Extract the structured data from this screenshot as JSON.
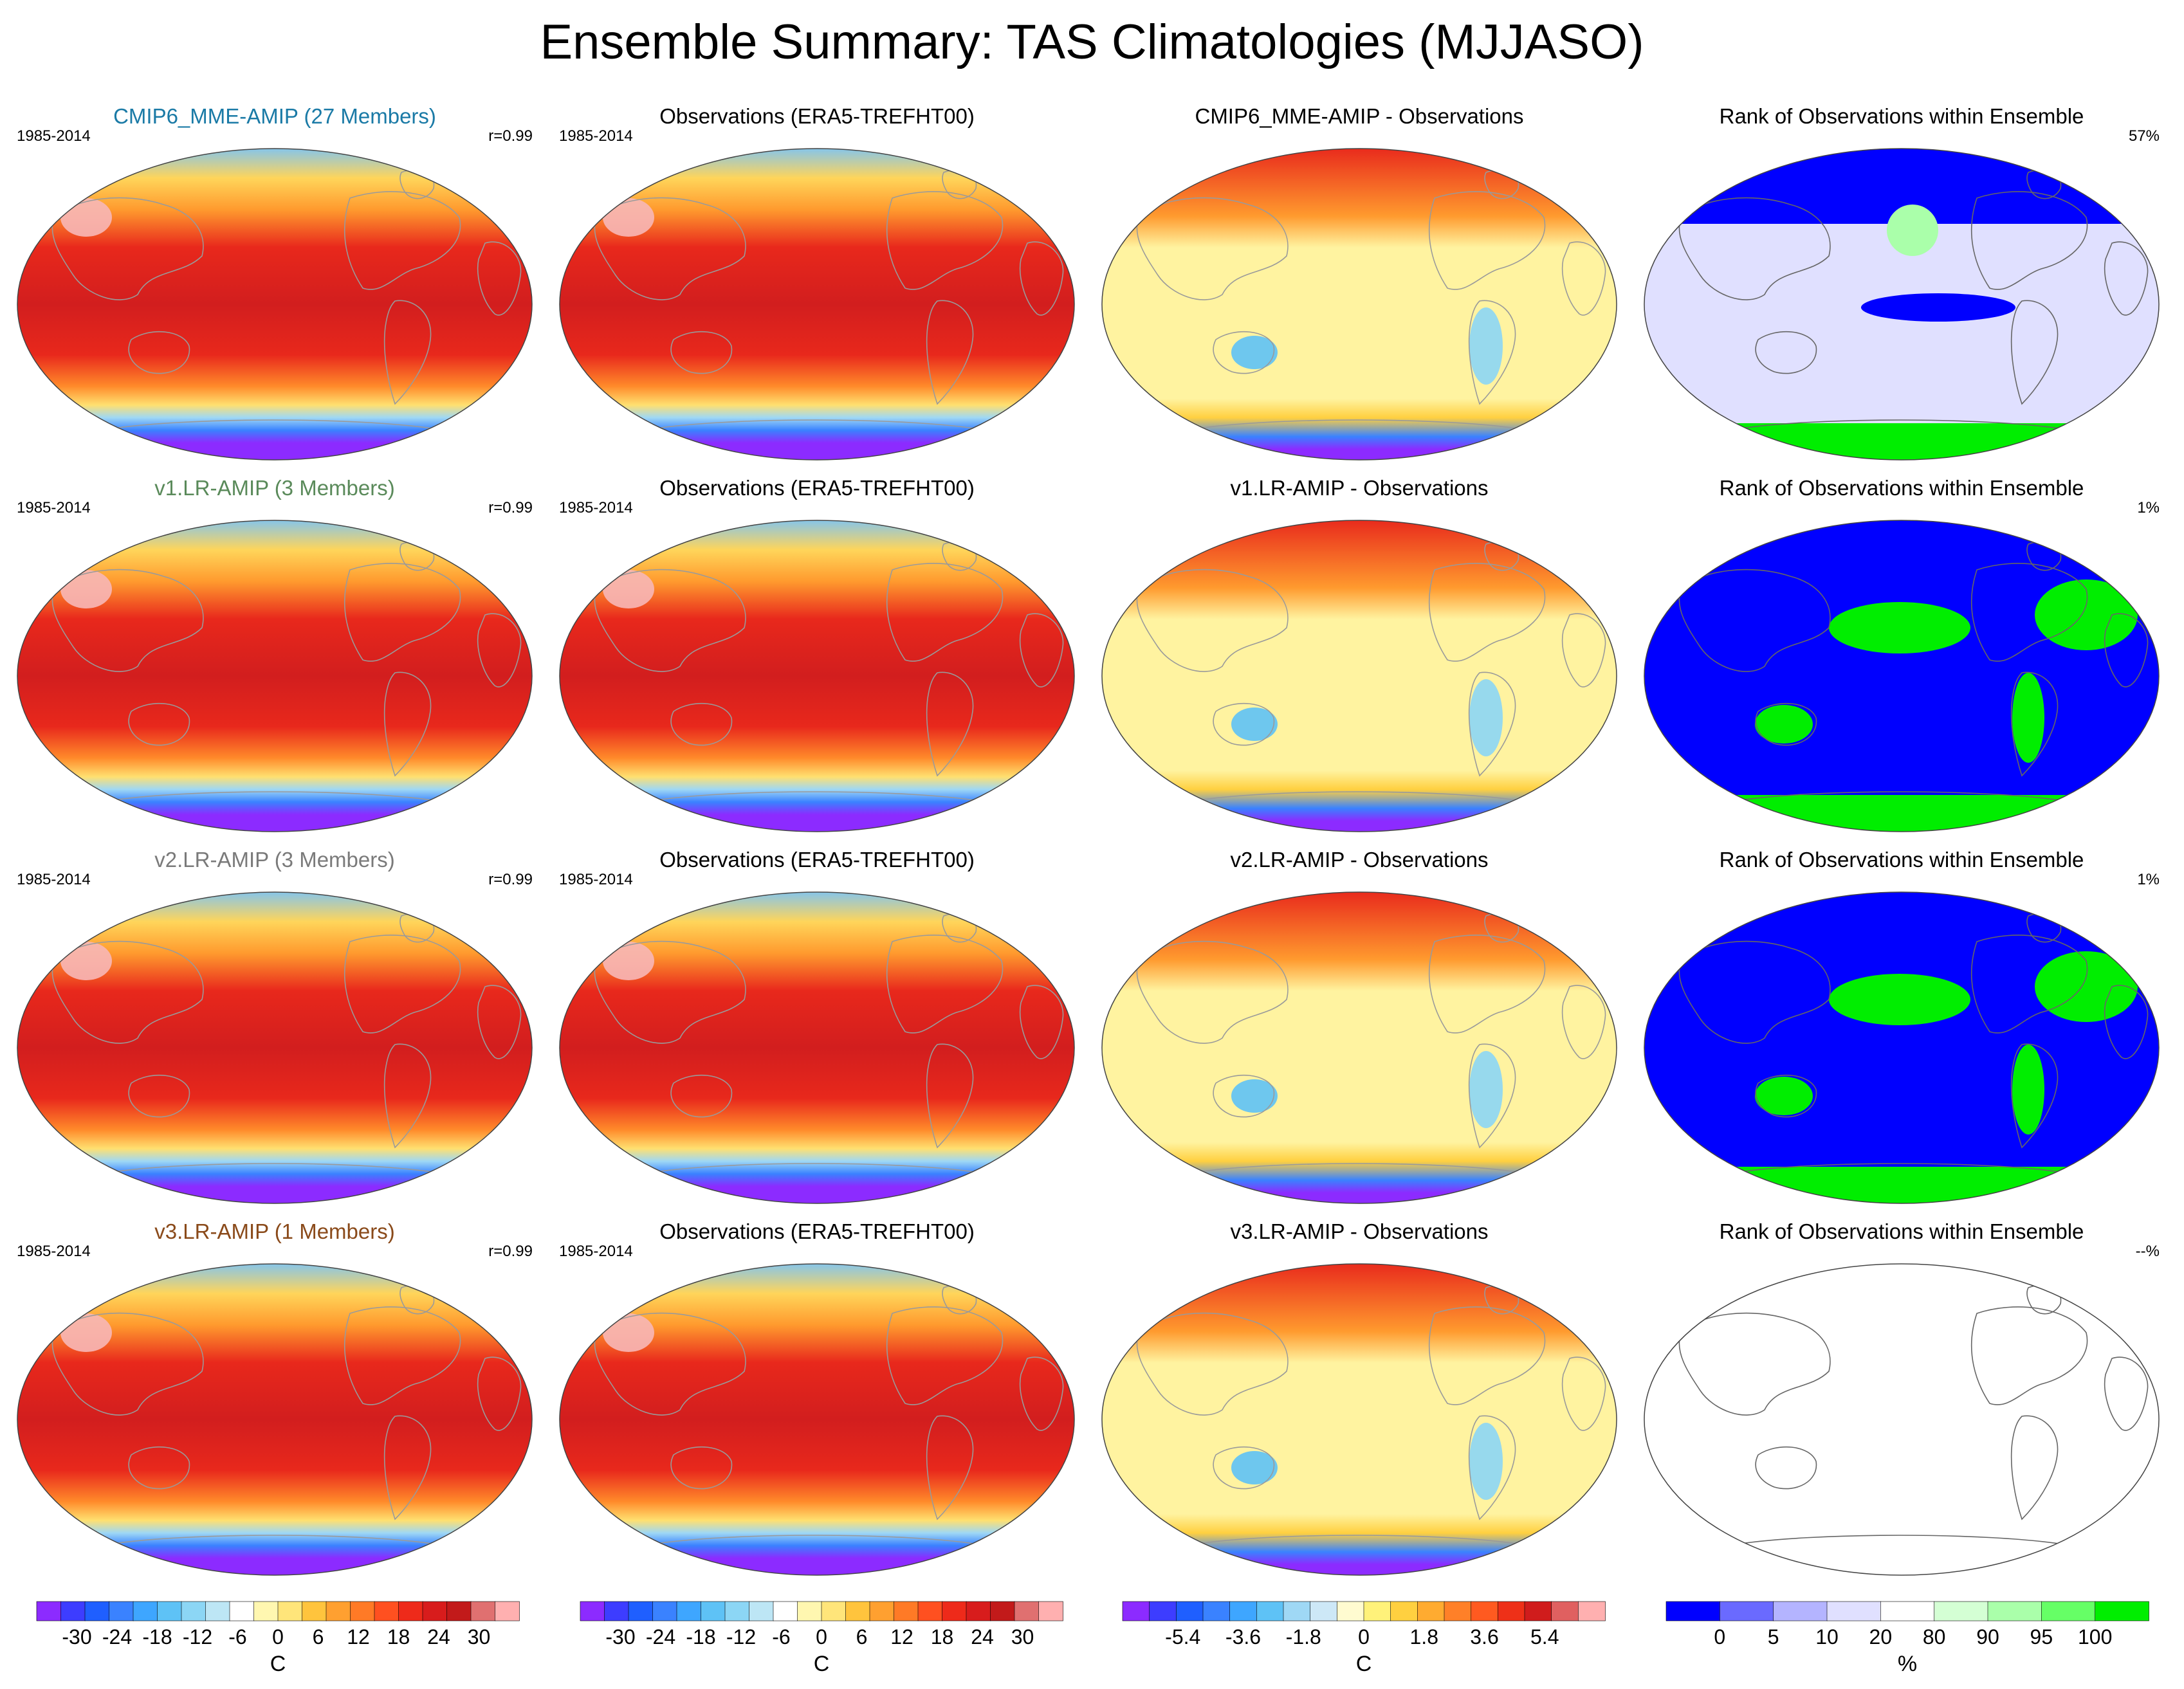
{
  "title": "Ensemble Summary: TAS Climatologies (MJJASO)",
  "colors": {
    "temperature": [
      "#8c2bff",
      "#3d3dff",
      "#1f5fff",
      "#3a82ff",
      "#3ea6ff",
      "#5ec2f6",
      "#8cd6f5",
      "#bde6f5",
      "#ffffff",
      "#fff7b0",
      "#ffe57a",
      "#ffc43d",
      "#ffa030",
      "#ff7a26",
      "#ff5020",
      "#ee2a1a",
      "#d81c1c",
      "#c21a1a",
      "#e07070",
      "#ffb0b0"
    ],
    "difference": [
      "#8c2bff",
      "#3d3dff",
      "#1f5fff",
      "#3a82ff",
      "#3ea6ff",
      "#5ec2f6",
      "#9fd8f5",
      "#cde8f7",
      "#fffbd0",
      "#fff27a",
      "#ffd040",
      "#ffab30",
      "#ff8028",
      "#ff5a20",
      "#ee3018",
      "#d01c1c",
      "#e06060",
      "#ffb0b0"
    ],
    "rank": [
      "#0000ff",
      "#6a6aff",
      "#b4b4ff",
      "#e0e0ff",
      "#ffffff",
      "#d4ffd4",
      "#aaffaa",
      "#66ff66",
      "#00ee00"
    ]
  },
  "rows": [
    {
      "model": {
        "title": "CMIP6_MME-AMIP (27 Members)",
        "title_color": "#1a7aa6",
        "period": "1985-2014",
        "stat": "r=0.99"
      },
      "obs": {
        "title": "Observations (ERA5-TREFHT00)",
        "period": "1985-2014"
      },
      "diff": {
        "title": "CMIP6_MME-AMIP - Observations"
      },
      "rank": {
        "title": "Rank of Observations within Ensemble",
        "stat": "57%"
      }
    },
    {
      "model": {
        "title": "v1.LR-AMIP (3 Members)",
        "title_color": "#5a8a5a",
        "period": "1985-2014",
        "stat": "r=0.99"
      },
      "obs": {
        "title": "Observations (ERA5-TREFHT00)",
        "period": "1985-2014"
      },
      "diff": {
        "title": "v1.LR-AMIP - Observations"
      },
      "rank": {
        "title": "Rank of Observations within Ensemble",
        "stat": "1%"
      }
    },
    {
      "model": {
        "title": "v2.LR-AMIP (3 Members)",
        "title_color": "#7a7a7a",
        "period": "1985-2014",
        "stat": "r=0.99"
      },
      "obs": {
        "title": "Observations (ERA5-TREFHT00)",
        "period": "1985-2014"
      },
      "diff": {
        "title": "v2.LR-AMIP - Observations"
      },
      "rank": {
        "title": "Rank of Observations within Ensemble",
        "stat": "1%"
      }
    },
    {
      "model": {
        "title": "v3.LR-AMIP (1 Members)",
        "title_color": "#8a4a1a",
        "period": "1985-2014",
        "stat": "r=0.99"
      },
      "obs": {
        "title": "Observations (ERA5-TREFHT00)",
        "period": "1985-2014"
      },
      "diff": {
        "title": "v3.LR-AMIP - Observations"
      },
      "rank": {
        "title": "Rank of Observations within Ensemble",
        "stat": "--%"
      }
    }
  ],
  "colorbars": [
    {
      "palette": "temperature",
      "ticks": [
        "-30",
        "-24",
        "-18",
        "-12",
        "-6",
        "0",
        "6",
        "12",
        "18",
        "24",
        "30"
      ],
      "label": "C"
    },
    {
      "palette": "temperature",
      "ticks": [
        "-30",
        "-24",
        "-18",
        "-12",
        "-6",
        "0",
        "6",
        "12",
        "18",
        "24",
        "30"
      ],
      "label": "C"
    },
    {
      "palette": "difference",
      "ticks": [
        "-5.4",
        "-3.6",
        "-1.8",
        "0",
        "1.8",
        "3.6",
        "5.4"
      ],
      "label": "C"
    },
    {
      "palette": "rank",
      "ticks": [
        "0",
        "5",
        "10",
        "20",
        "80",
        "90",
        "95",
        "100"
      ],
      "label": "%"
    }
  ],
  "chart_data": {
    "type": "heatmap",
    "title": "Ensemble Summary: TAS Climatologies (MJJASO)",
    "variable": "TAS",
    "season": "MJJASO",
    "period": "1985-2014",
    "projection": "Robinson (global)",
    "grid": "4 rows x 4 columns of map panels",
    "columns": [
      "model climatology",
      "observations",
      "model - observations",
      "rank of observations within ensemble"
    ],
    "panels": [
      {
        "row": 1,
        "title": "CMIP6_MME-AMIP (27 Members)",
        "pattern_correlation": 0.99
      },
      {
        "row": 1,
        "title": "Observations (ERA5-TREFHT00)"
      },
      {
        "row": 1,
        "title": "CMIP6_MME-AMIP - Observations"
      },
      {
        "row": 1,
        "title": "Rank of Observations within Ensemble",
        "percent": 57
      },
      {
        "row": 2,
        "title": "v1.LR-AMIP (3 Members)",
        "pattern_correlation": 0.99
      },
      {
        "row": 2,
        "title": "Observations (ERA5-TREFHT00)"
      },
      {
        "row": 2,
        "title": "v1.LR-AMIP - Observations"
      },
      {
        "row": 2,
        "title": "Rank of Observations within Ensemble",
        "percent": 1
      },
      {
        "row": 3,
        "title": "v2.LR-AMIP (3 Members)",
        "pattern_correlation": 0.99
      },
      {
        "row": 3,
        "title": "Observations (ERA5-TREFHT00)"
      },
      {
        "row": 3,
        "title": "v2.LR-AMIP - Observations"
      },
      {
        "row": 3,
        "title": "Rank of Observations within Ensemble",
        "percent": 1
      },
      {
        "row": 4,
        "title": "v3.LR-AMIP (1 Members)",
        "pattern_correlation": 0.99
      },
      {
        "row": 4,
        "title": "Observations (ERA5-TREFHT00)"
      },
      {
        "row": 4,
        "title": "v3.LR-AMIP - Observations"
      },
      {
        "row": 4,
        "title": "Rank of Observations within Ensemble",
        "percent": "--"
      }
    ],
    "colorbars": [
      {
        "for": "climatology",
        "units": "C",
        "range": [
          -30,
          30
        ],
        "ticks": [
          -30,
          -24,
          -18,
          -12,
          -6,
          0,
          6,
          12,
          18,
          24,
          30
        ]
      },
      {
        "for": "observations",
        "units": "C",
        "range": [
          -30,
          30
        ],
        "ticks": [
          -30,
          -24,
          -18,
          -12,
          -6,
          0,
          6,
          12,
          18,
          24,
          30
        ]
      },
      {
        "for": "difference",
        "units": "C",
        "range": [
          -5.4,
          5.4
        ],
        "ticks": [
          -5.4,
          -3.6,
          -1.8,
          0,
          1.8,
          3.6,
          5.4
        ]
      },
      {
        "for": "rank",
        "units": "%",
        "ticks": [
          0,
          5,
          10,
          20,
          80,
          90,
          95,
          100
        ]
      }
    ]
  }
}
